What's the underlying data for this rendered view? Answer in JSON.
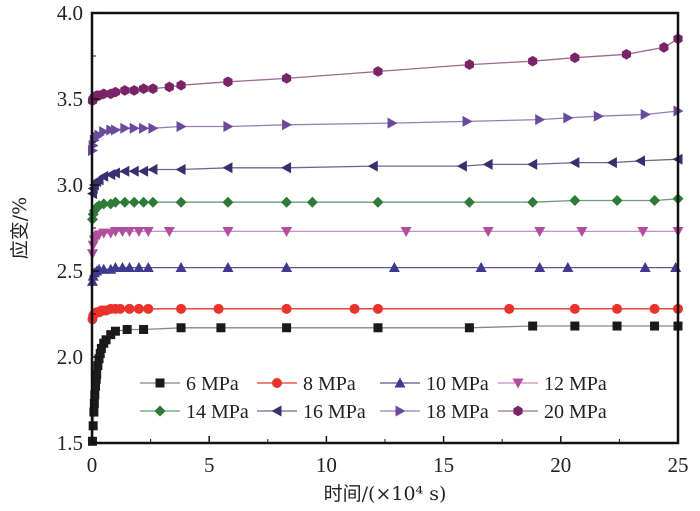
{
  "chart_data": {
    "type": "line",
    "title": "",
    "xlabel": "时间/(×10⁴ s)",
    "ylabel": "应变/%",
    "xlim": [
      0,
      25
    ],
    "ylim": [
      1.5,
      4.0
    ],
    "xticks": [
      "0",
      "5",
      "10",
      "15",
      "20",
      "25"
    ],
    "yticks": [
      "1.5",
      "2.0",
      "2.5",
      "3.0",
      "3.5",
      "4.0"
    ],
    "grid": false,
    "legend_position": "bottom-center",
    "series": [
      {
        "name": "6 MPa",
        "color": "#1a1a1a",
        "line_color": "#888888",
        "marker": "square",
        "x": [
          0.02,
          0.05,
          0.08,
          0.1,
          0.12,
          0.15,
          0.18,
          0.2,
          0.25,
          0.3,
          0.35,
          0.4,
          0.5,
          0.6,
          0.8,
          1.0,
          1.5,
          2.2,
          3.8,
          5.5,
          8.3,
          12.2,
          16.1,
          18.8,
          20.6,
          22.4,
          24.0,
          25.0
        ],
        "y": [
          1.51,
          1.6,
          1.68,
          1.73,
          1.78,
          1.83,
          1.87,
          1.9,
          1.95,
          1.99,
          2.02,
          2.05,
          2.08,
          2.1,
          2.13,
          2.15,
          2.16,
          2.16,
          2.17,
          2.17,
          2.17,
          2.17,
          2.17,
          2.18,
          2.18,
          2.18,
          2.18,
          2.18
        ]
      },
      {
        "name": "8 MPa",
        "color": "#e8342a",
        "line_color": "#e8342a",
        "marker": "circle",
        "x": [
          0.02,
          0.05,
          0.1,
          0.2,
          0.3,
          0.4,
          0.5,
          0.6,
          0.8,
          1.0,
          1.2,
          1.6,
          2.0,
          2.4,
          3.8,
          5.4,
          8.3,
          11.2,
          12.2,
          17.8,
          20.6,
          22.4,
          24.0,
          25.0
        ],
        "y": [
          2.22,
          2.24,
          2.25,
          2.26,
          2.26,
          2.27,
          2.27,
          2.27,
          2.28,
          2.28,
          2.28,
          2.28,
          2.28,
          2.28,
          2.28,
          2.28,
          2.28,
          2.28,
          2.28,
          2.28,
          2.28,
          2.28,
          2.28,
          2.28
        ]
      },
      {
        "name": "10 MPa",
        "color": "#3e3a8f",
        "line_color": "#5a5699",
        "marker": "triangle-up",
        "x": [
          0.02,
          0.05,
          0.1,
          0.2,
          0.3,
          0.5,
          0.8,
          1.0,
          1.3,
          1.6,
          2.0,
          2.4,
          3.8,
          5.8,
          8.3,
          12.9,
          16.6,
          19.1,
          20.3,
          23.6,
          24.9
        ],
        "y": [
          2.44,
          2.47,
          2.49,
          2.5,
          2.51,
          2.51,
          2.51,
          2.52,
          2.52,
          2.52,
          2.52,
          2.52,
          2.52,
          2.52,
          2.52,
          2.52,
          2.52,
          2.52,
          2.52,
          2.52,
          2.52
        ]
      },
      {
        "name": "12 MPa",
        "color": "#b24e9e",
        "line_color": "#c78ec0",
        "marker": "triangle-down",
        "x": [
          0.02,
          0.05,
          0.1,
          0.2,
          0.3,
          0.5,
          0.8,
          1.0,
          1.3,
          1.6,
          2.0,
          2.4,
          3.3,
          5.8,
          8.3,
          13.4,
          16.9,
          19.1,
          20.9,
          23.5,
          25.0
        ],
        "y": [
          2.6,
          2.65,
          2.68,
          2.7,
          2.71,
          2.72,
          2.72,
          2.73,
          2.73,
          2.73,
          2.73,
          2.73,
          2.73,
          2.73,
          2.73,
          2.73,
          2.73,
          2.73,
          2.73,
          2.73,
          2.73
        ]
      },
      {
        "name": "14 MPa",
        "color": "#2e7a38",
        "line_color": "#6e9a72",
        "marker": "diamond",
        "x": [
          0.02,
          0.05,
          0.1,
          0.2,
          0.3,
          0.5,
          0.8,
          1.0,
          1.4,
          1.8,
          2.2,
          2.6,
          3.8,
          5.8,
          8.3,
          9.4,
          12.2,
          16.1,
          18.8,
          20.6,
          22.4,
          24.0,
          25.0
        ],
        "y": [
          2.8,
          2.83,
          2.85,
          2.87,
          2.88,
          2.89,
          2.89,
          2.9,
          2.9,
          2.9,
          2.9,
          2.9,
          2.9,
          2.9,
          2.9,
          2.9,
          2.9,
          2.9,
          2.9,
          2.91,
          2.91,
          2.91,
          2.92
        ]
      },
      {
        "name": "16 MPa",
        "color": "#3a2e6e",
        "line_color": "#6e6890",
        "marker": "triangle-left",
        "x": [
          0.02,
          0.05,
          0.1,
          0.2,
          0.3,
          0.5,
          0.8,
          1.0,
          1.4,
          1.8,
          2.2,
          2.6,
          3.8,
          5.8,
          8.3,
          12.0,
          15.8,
          16.9,
          18.8,
          20.6,
          22.2,
          23.4,
          25.0
        ],
        "y": [
          2.95,
          2.98,
          3.0,
          3.02,
          3.03,
          3.05,
          3.06,
          3.07,
          3.08,
          3.08,
          3.08,
          3.09,
          3.09,
          3.1,
          3.1,
          3.11,
          3.11,
          3.12,
          3.12,
          3.13,
          3.13,
          3.14,
          3.15
        ]
      },
      {
        "name": "18 MPa",
        "color": "#6a4a9a",
        "line_color": "#9480b4",
        "marker": "triangle-right",
        "x": [
          0.02,
          0.05,
          0.1,
          0.2,
          0.3,
          0.5,
          0.8,
          1.0,
          1.4,
          1.8,
          2.2,
          2.6,
          3.8,
          5.8,
          8.3,
          12.8,
          16.0,
          19.1,
          20.3,
          21.6,
          23.6,
          25.0
        ],
        "y": [
          3.2,
          3.23,
          3.26,
          3.28,
          3.29,
          3.31,
          3.32,
          3.32,
          3.33,
          3.33,
          3.33,
          3.33,
          3.34,
          3.34,
          3.35,
          3.36,
          3.37,
          3.38,
          3.39,
          3.4,
          3.41,
          3.43
        ]
      },
      {
        "name": "20 MPa",
        "color": "#7a2468",
        "line_color": "#9a6a90",
        "marker": "hexagon",
        "x": [
          0.02,
          0.05,
          0.1,
          0.2,
          0.3,
          0.5,
          0.8,
          1.0,
          1.4,
          1.8,
          2.2,
          2.6,
          3.3,
          3.8,
          5.8,
          8.3,
          12.2,
          16.1,
          18.8,
          20.6,
          22.8,
          24.4,
          25.0
        ],
        "y": [
          3.49,
          3.5,
          3.51,
          3.52,
          3.52,
          3.53,
          3.53,
          3.54,
          3.55,
          3.55,
          3.56,
          3.56,
          3.57,
          3.58,
          3.6,
          3.62,
          3.66,
          3.7,
          3.72,
          3.74,
          3.76,
          3.8,
          3.85
        ]
      }
    ]
  }
}
